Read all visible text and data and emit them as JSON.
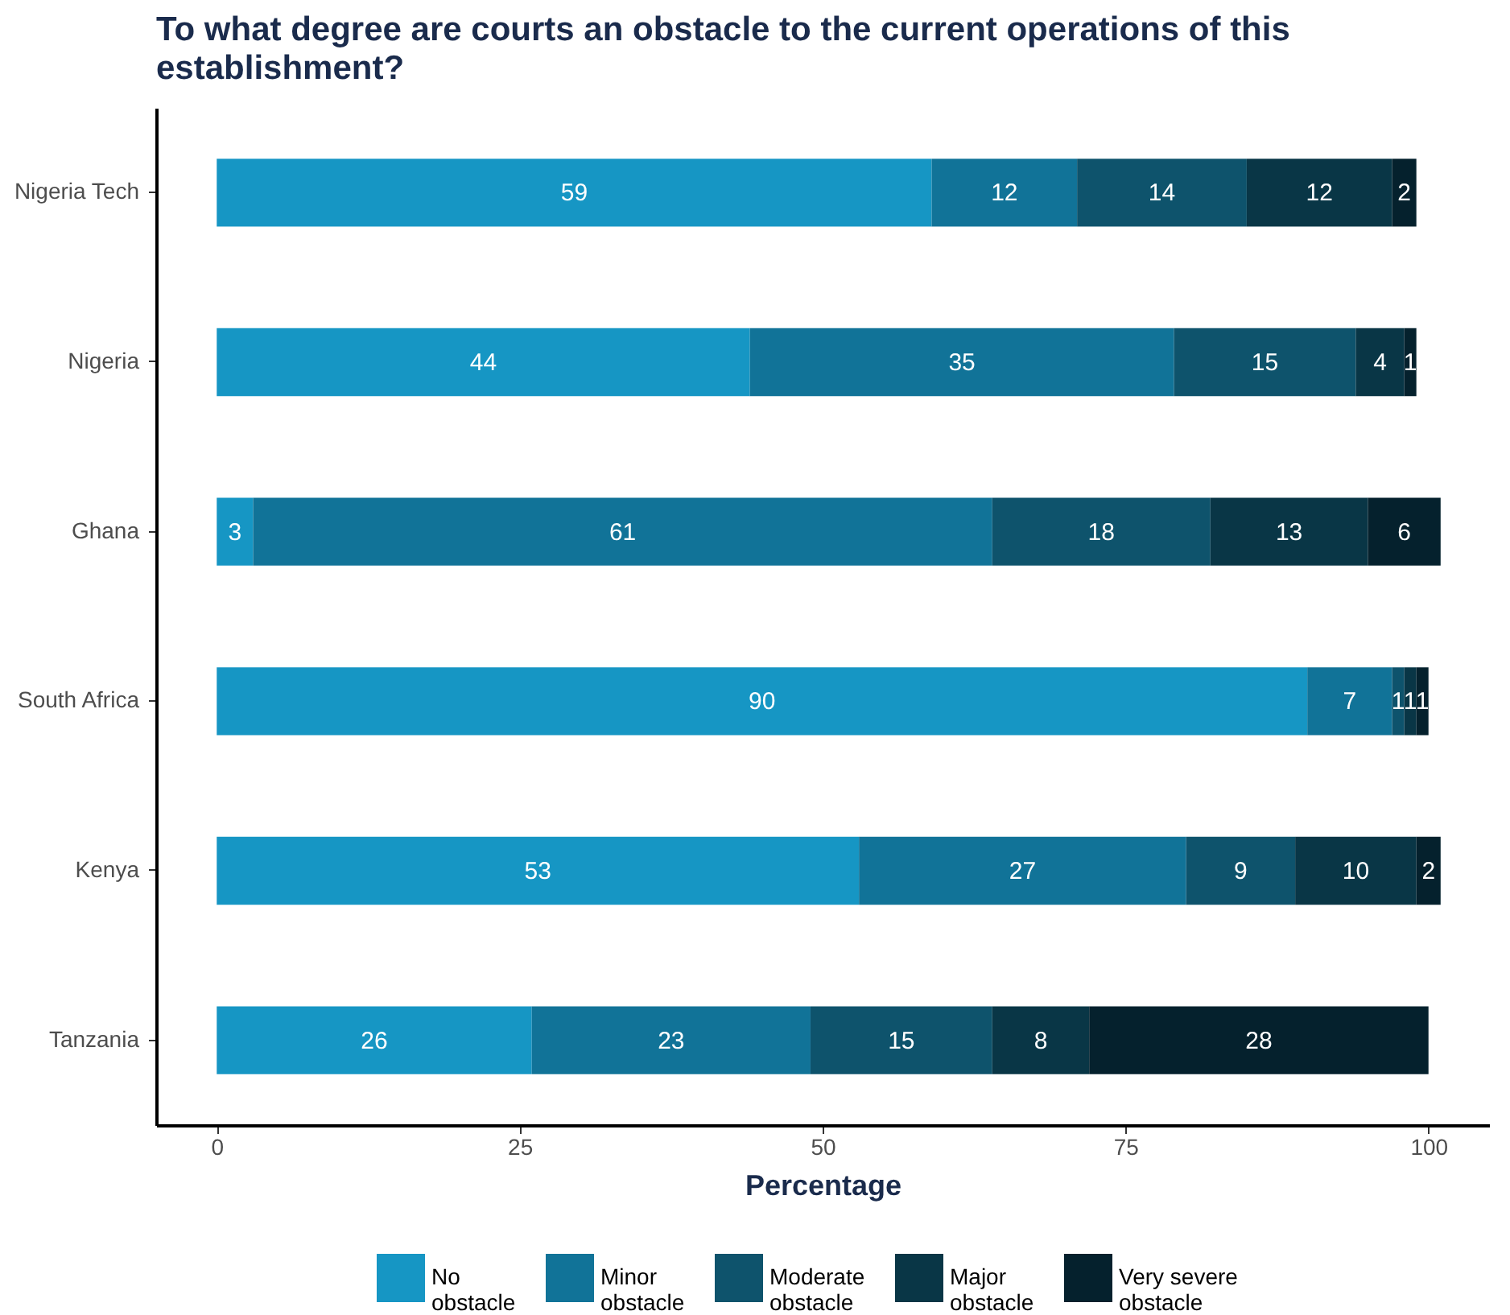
{
  "chart_data": {
    "type": "bar",
    "orientation": "horizontal",
    "stacked": true,
    "title": "To what degree are courts an obstacle to the current operations of this establishment?",
    "xlabel": "Percentage",
    "categories": [
      "Nigeria Tech",
      "Nigeria",
      "Ghana",
      "South Africa",
      "Kenya",
      "Tanzania"
    ],
    "series": [
      {
        "name": "No obstacle",
        "color": "#1696c4",
        "values": [
          59,
          44,
          3,
          90,
          53,
          26
        ]
      },
      {
        "name": "Minor obstacle",
        "color": "#117398",
        "values": [
          12,
          35,
          61,
          7,
          27,
          23
        ]
      },
      {
        "name": "Moderate obstacle",
        "color": "#0e536c",
        "values": [
          14,
          15,
          18,
          1,
          9,
          15
        ]
      },
      {
        "name": "Major obstacle",
        "color": "#093646",
        "values": [
          12,
          4,
          13,
          1,
          10,
          8
        ]
      },
      {
        "name": "Very severe obstacle",
        "color": "#05212d",
        "values": [
          2,
          1,
          6,
          1,
          2,
          28
        ]
      }
    ],
    "xlim": [
      -5,
      105
    ],
    "xticks": [
      0,
      25,
      50,
      75,
      100
    ],
    "data_labels": true,
    "legend": "bottom",
    "grid": false
  }
}
